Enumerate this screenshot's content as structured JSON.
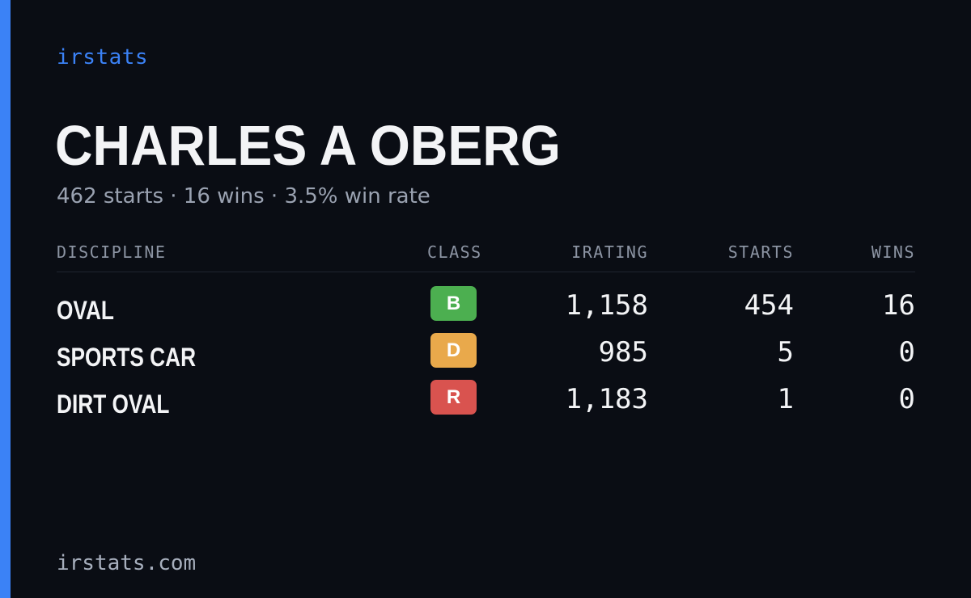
{
  "brand": "irstats",
  "driver": {
    "name": "CHARLES A OBERG",
    "summary": "462 starts · 16 wins · 3.5% win rate"
  },
  "table": {
    "headers": {
      "discipline": "DISCIPLINE",
      "class": "CLASS",
      "irating": "IRATING",
      "starts": "STARTS",
      "wins": "WINS"
    },
    "rows": [
      {
        "discipline": "OVAL",
        "class": "B",
        "class_color": "#4caf50",
        "irating": "1,158",
        "starts": "454",
        "wins": "16"
      },
      {
        "discipline": "SPORTS CAR",
        "class": "D",
        "class_color": "#e9a94b",
        "irating": "985",
        "starts": "5",
        "wins": "0"
      },
      {
        "discipline": "DIRT OVAL",
        "class": "R",
        "class_color": "#d9534f",
        "irating": "1,183",
        "starts": "1",
        "wins": "0"
      }
    ]
  },
  "footer": "irstats.com",
  "colors": {
    "accent": "#3b82f6",
    "background": "#0a0d14"
  }
}
